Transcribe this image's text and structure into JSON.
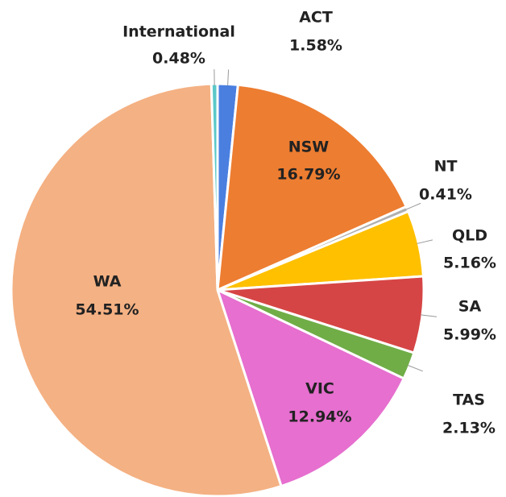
{
  "chart_data": {
    "type": "pie",
    "categories": [
      "ACT",
      "NSW",
      "NT",
      "QLD",
      "SA",
      "TAS",
      "VIC",
      "WA",
      "International"
    ],
    "values": [
      1.58,
      16.79,
      0.41,
      5.16,
      5.99,
      2.13,
      12.94,
      54.51,
      0.48
    ],
    "value_labels": [
      "1.58%",
      "16.79%",
      "0.41%",
      "5.16%",
      "5.99%",
      "2.13%",
      "12.94%",
      "54.51%",
      "0.48%"
    ],
    "colors": [
      "#4a7fe0",
      "#ed7d31",
      "#b0b0b0",
      "#ffc000",
      "#d64545",
      "#70ad47",
      "#e66fcf",
      "#f4b183",
      "#5bc8c8"
    ]
  }
}
